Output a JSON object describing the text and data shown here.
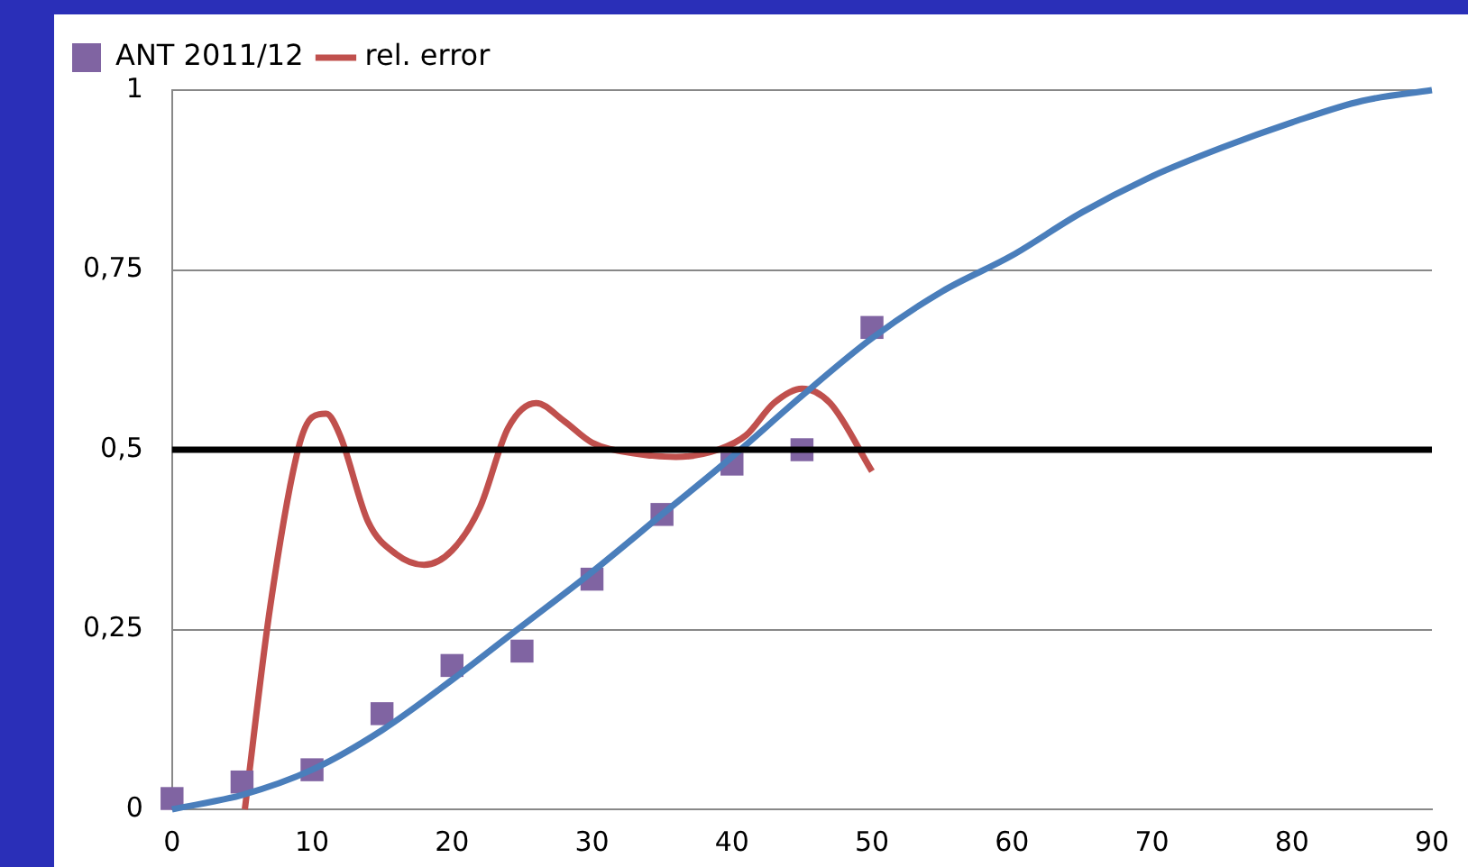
{
  "chart_data": {
    "type": "line",
    "xlim": [
      0,
      90
    ],
    "xticks": [
      0,
      10,
      20,
      30,
      40,
      50,
      60,
      70,
      80,
      90
    ],
    "ylim": [
      0,
      1
    ],
    "yticks": [
      0,
      {
        "value": 0.25,
        "label": "0,25"
      },
      {
        "value": 0.5,
        "label": "0,5"
      },
      {
        "value": 0.75,
        "label": "0,75"
      },
      1
    ],
    "grid": "y",
    "legend": "top left",
    "ref_lines": [
      {
        "axis": "y",
        "value": 0.5,
        "color": "#000000"
      }
    ],
    "series": [
      {
        "color": "#4a7ebb",
        "marker": "none",
        "x": [
          0,
          5,
          10,
          15,
          20,
          25,
          30,
          35,
          40,
          45,
          50,
          55,
          60,
          65,
          70,
          75,
          80,
          85,
          90
        ],
        "values": [
          0,
          0.02,
          0.055,
          0.11,
          0.18,
          0.255,
          0.33,
          0.41,
          0.49,
          0.575,
          0.655,
          0.72,
          0.77,
          0.83,
          0.88,
          0.92,
          0.955,
          0.985,
          1
        ]
      },
      {
        "type": "scatter",
        "name": "ANT 2011/12",
        "color": "#8064a2",
        "marker": "square",
        "x": [
          0,
          5,
          10,
          15,
          20,
          25,
          30,
          35,
          40,
          45,
          50
        ],
        "values": [
          0.015,
          0.038,
          0.055,
          0.133,
          0.2,
          0.22,
          0.32,
          0.41,
          0.48,
          0.5,
          0.67
        ]
      },
      {
        "name": "rel. error",
        "color": "#c0504d",
        "marker": "none",
        "x": [
          5.2,
          7,
          9,
          10,
          11,
          12,
          14,
          16,
          18,
          20,
          22,
          24,
          26,
          28,
          30,
          33,
          36,
          39,
          41,
          43,
          45,
          47,
          50
        ],
        "values": [
          0,
          0.28,
          0.5,
          0.545,
          0.55,
          0.52,
          0.4,
          0.355,
          0.34,
          0.36,
          0.42,
          0.53,
          0.565,
          0.54,
          0.51,
          0.495,
          0.49,
          0.5,
          0.52,
          0.565,
          0.585,
          0.565,
          0.47
        ]
      }
    ]
  }
}
